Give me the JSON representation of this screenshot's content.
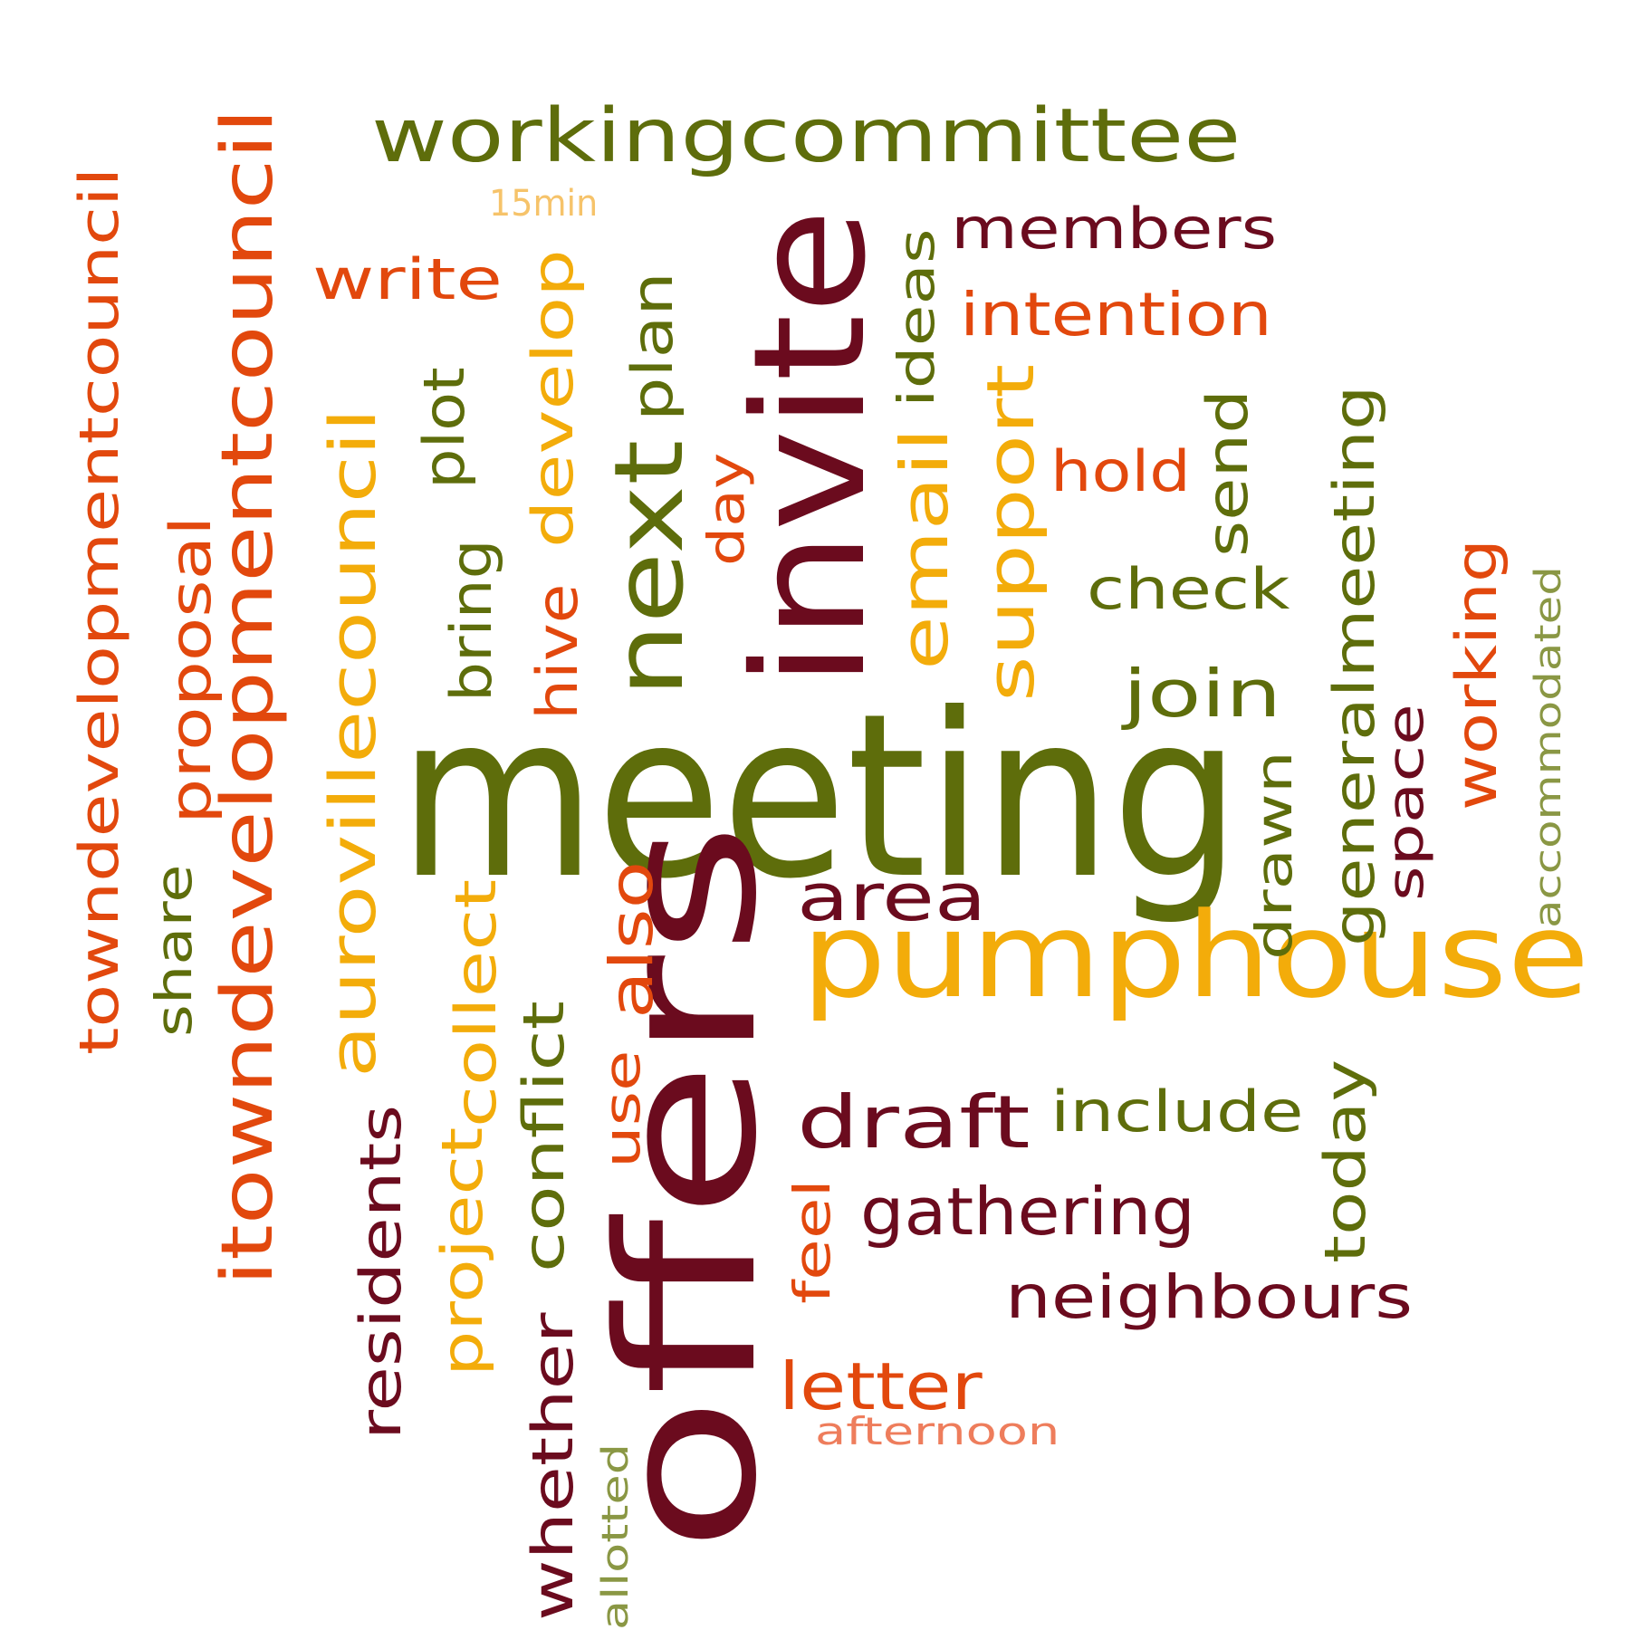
{
  "palette": {
    "dark_red": "#6b0b1e",
    "olive": "#5e6d0b",
    "orange_red": "#e2480d",
    "amber": "#f3ac0a",
    "light_amber": "#f6c36a",
    "light_olive": "#8a9744",
    "salmon": "#ee7d5c"
  },
  "words": [
    {
      "id": "meeting",
      "text": "meeting",
      "color": "olive",
      "orientation": "horizontal"
    },
    {
      "id": "offers",
      "text": "offers",
      "color": "dark_red",
      "orientation": "vertical"
    },
    {
      "id": "invite",
      "text": "invite",
      "color": "dark_red",
      "orientation": "vertical"
    },
    {
      "id": "pumphouse",
      "text": "pumphouse",
      "color": "amber",
      "orientation": "horizontal"
    },
    {
      "id": "workingcommittee",
      "text": "workingcommittee",
      "color": "olive",
      "orientation": "horizontal"
    },
    {
      "id": "next",
      "text": "next",
      "color": "olive",
      "orientation": "vertical"
    },
    {
      "id": "itowndevelopmentcouncil",
      "text": "itowndevelopmentcouncil",
      "color": "orange_red",
      "orientation": "vertical"
    },
    {
      "id": "aurovillecouncil",
      "text": "aurovillecouncil",
      "color": "amber",
      "orientation": "vertical"
    },
    {
      "id": "towndevelopmentcouncil",
      "text": "towndevelopmentcouncil",
      "color": "orange_red",
      "orientation": "vertical"
    },
    {
      "id": "proposal",
      "text": "proposal",
      "color": "orange_red",
      "orientation": "vertical"
    },
    {
      "id": "share",
      "text": "share",
      "color": "olive",
      "orientation": "vertical"
    },
    {
      "id": "write",
      "text": "write",
      "color": "orange_red",
      "orientation": "horizontal"
    },
    {
      "id": "15min",
      "text": "15min",
      "color": "light_amber",
      "orientation": "horizontal"
    },
    {
      "id": "develop",
      "text": "develop",
      "color": "amber",
      "orientation": "vertical"
    },
    {
      "id": "hive",
      "text": "hive",
      "color": "orange_red",
      "orientation": "vertical"
    },
    {
      "id": "plot",
      "text": "plot",
      "color": "olive",
      "orientation": "vertical"
    },
    {
      "id": "bring",
      "text": "bring",
      "color": "olive",
      "orientation": "vertical"
    },
    {
      "id": "plan",
      "text": "plan",
      "color": "olive",
      "orientation": "vertical"
    },
    {
      "id": "day",
      "text": "day",
      "color": "orange_red",
      "orientation": "vertical"
    },
    {
      "id": "ideas",
      "text": "ideas",
      "color": "olive",
      "orientation": "vertical"
    },
    {
      "id": "email",
      "text": "email",
      "color": "amber",
      "orientation": "vertical"
    },
    {
      "id": "support",
      "text": "support",
      "color": "amber",
      "orientation": "vertical"
    },
    {
      "id": "members",
      "text": "members",
      "color": "dark_red",
      "orientation": "horizontal"
    },
    {
      "id": "intention",
      "text": "intention",
      "color": "orange_red",
      "orientation": "horizontal"
    },
    {
      "id": "hold",
      "text": "hold",
      "color": "orange_red",
      "orientation": "horizontal"
    },
    {
      "id": "send",
      "text": "send",
      "color": "olive",
      "orientation": "vertical"
    },
    {
      "id": "check",
      "text": "check",
      "color": "olive",
      "orientation": "horizontal"
    },
    {
      "id": "join",
      "text": "join",
      "color": "olive",
      "orientation": "horizontal"
    },
    {
      "id": "generalmeeting",
      "text": "generalmeeting",
      "color": "olive",
      "orientation": "vertical"
    },
    {
      "id": "working",
      "text": "working",
      "color": "orange_red",
      "orientation": "vertical"
    },
    {
      "id": "space",
      "text": "space",
      "color": "dark_red",
      "orientation": "vertical"
    },
    {
      "id": "accommodated",
      "text": "accommodated",
      "color": "light_olive",
      "orientation": "vertical"
    },
    {
      "id": "drawn",
      "text": "drawn",
      "color": "olive",
      "orientation": "vertical"
    },
    {
      "id": "area",
      "text": "area",
      "color": "dark_red",
      "orientation": "horizontal"
    },
    {
      "id": "also",
      "text": "also",
      "color": "orange_red",
      "orientation": "vertical"
    },
    {
      "id": "collect",
      "text": "collect",
      "color": "amber",
      "orientation": "vertical"
    },
    {
      "id": "project",
      "text": "project",
      "color": "amber",
      "orientation": "vertical"
    },
    {
      "id": "residents",
      "text": "residents",
      "color": "dark_red",
      "orientation": "vertical"
    },
    {
      "id": "conflict",
      "text": "conflict",
      "color": "olive",
      "orientation": "vertical"
    },
    {
      "id": "use",
      "text": "use",
      "color": "orange_red",
      "orientation": "vertical"
    },
    {
      "id": "whether",
      "text": "whether",
      "color": "dark_red",
      "orientation": "vertical"
    },
    {
      "id": "allotted",
      "text": "allotted",
      "color": "light_olive",
      "orientation": "vertical"
    },
    {
      "id": "draft",
      "text": "draft",
      "color": "dark_red",
      "orientation": "horizontal"
    },
    {
      "id": "include",
      "text": "include",
      "color": "olive",
      "orientation": "horizontal"
    },
    {
      "id": "today",
      "text": "today",
      "color": "olive",
      "orientation": "vertical"
    },
    {
      "id": "feel",
      "text": "feel",
      "color": "orange_red",
      "orientation": "vertical"
    },
    {
      "id": "gathering",
      "text": "gathering",
      "color": "dark_red",
      "orientation": "horizontal"
    },
    {
      "id": "neighbours",
      "text": "neighbours",
      "color": "dark_red",
      "orientation": "horizontal"
    },
    {
      "id": "letter",
      "text": "letter",
      "color": "orange_red",
      "orientation": "horizontal"
    },
    {
      "id": "afternoon",
      "text": "afternoon",
      "color": "salmon",
      "orientation": "horizontal"
    }
  ]
}
